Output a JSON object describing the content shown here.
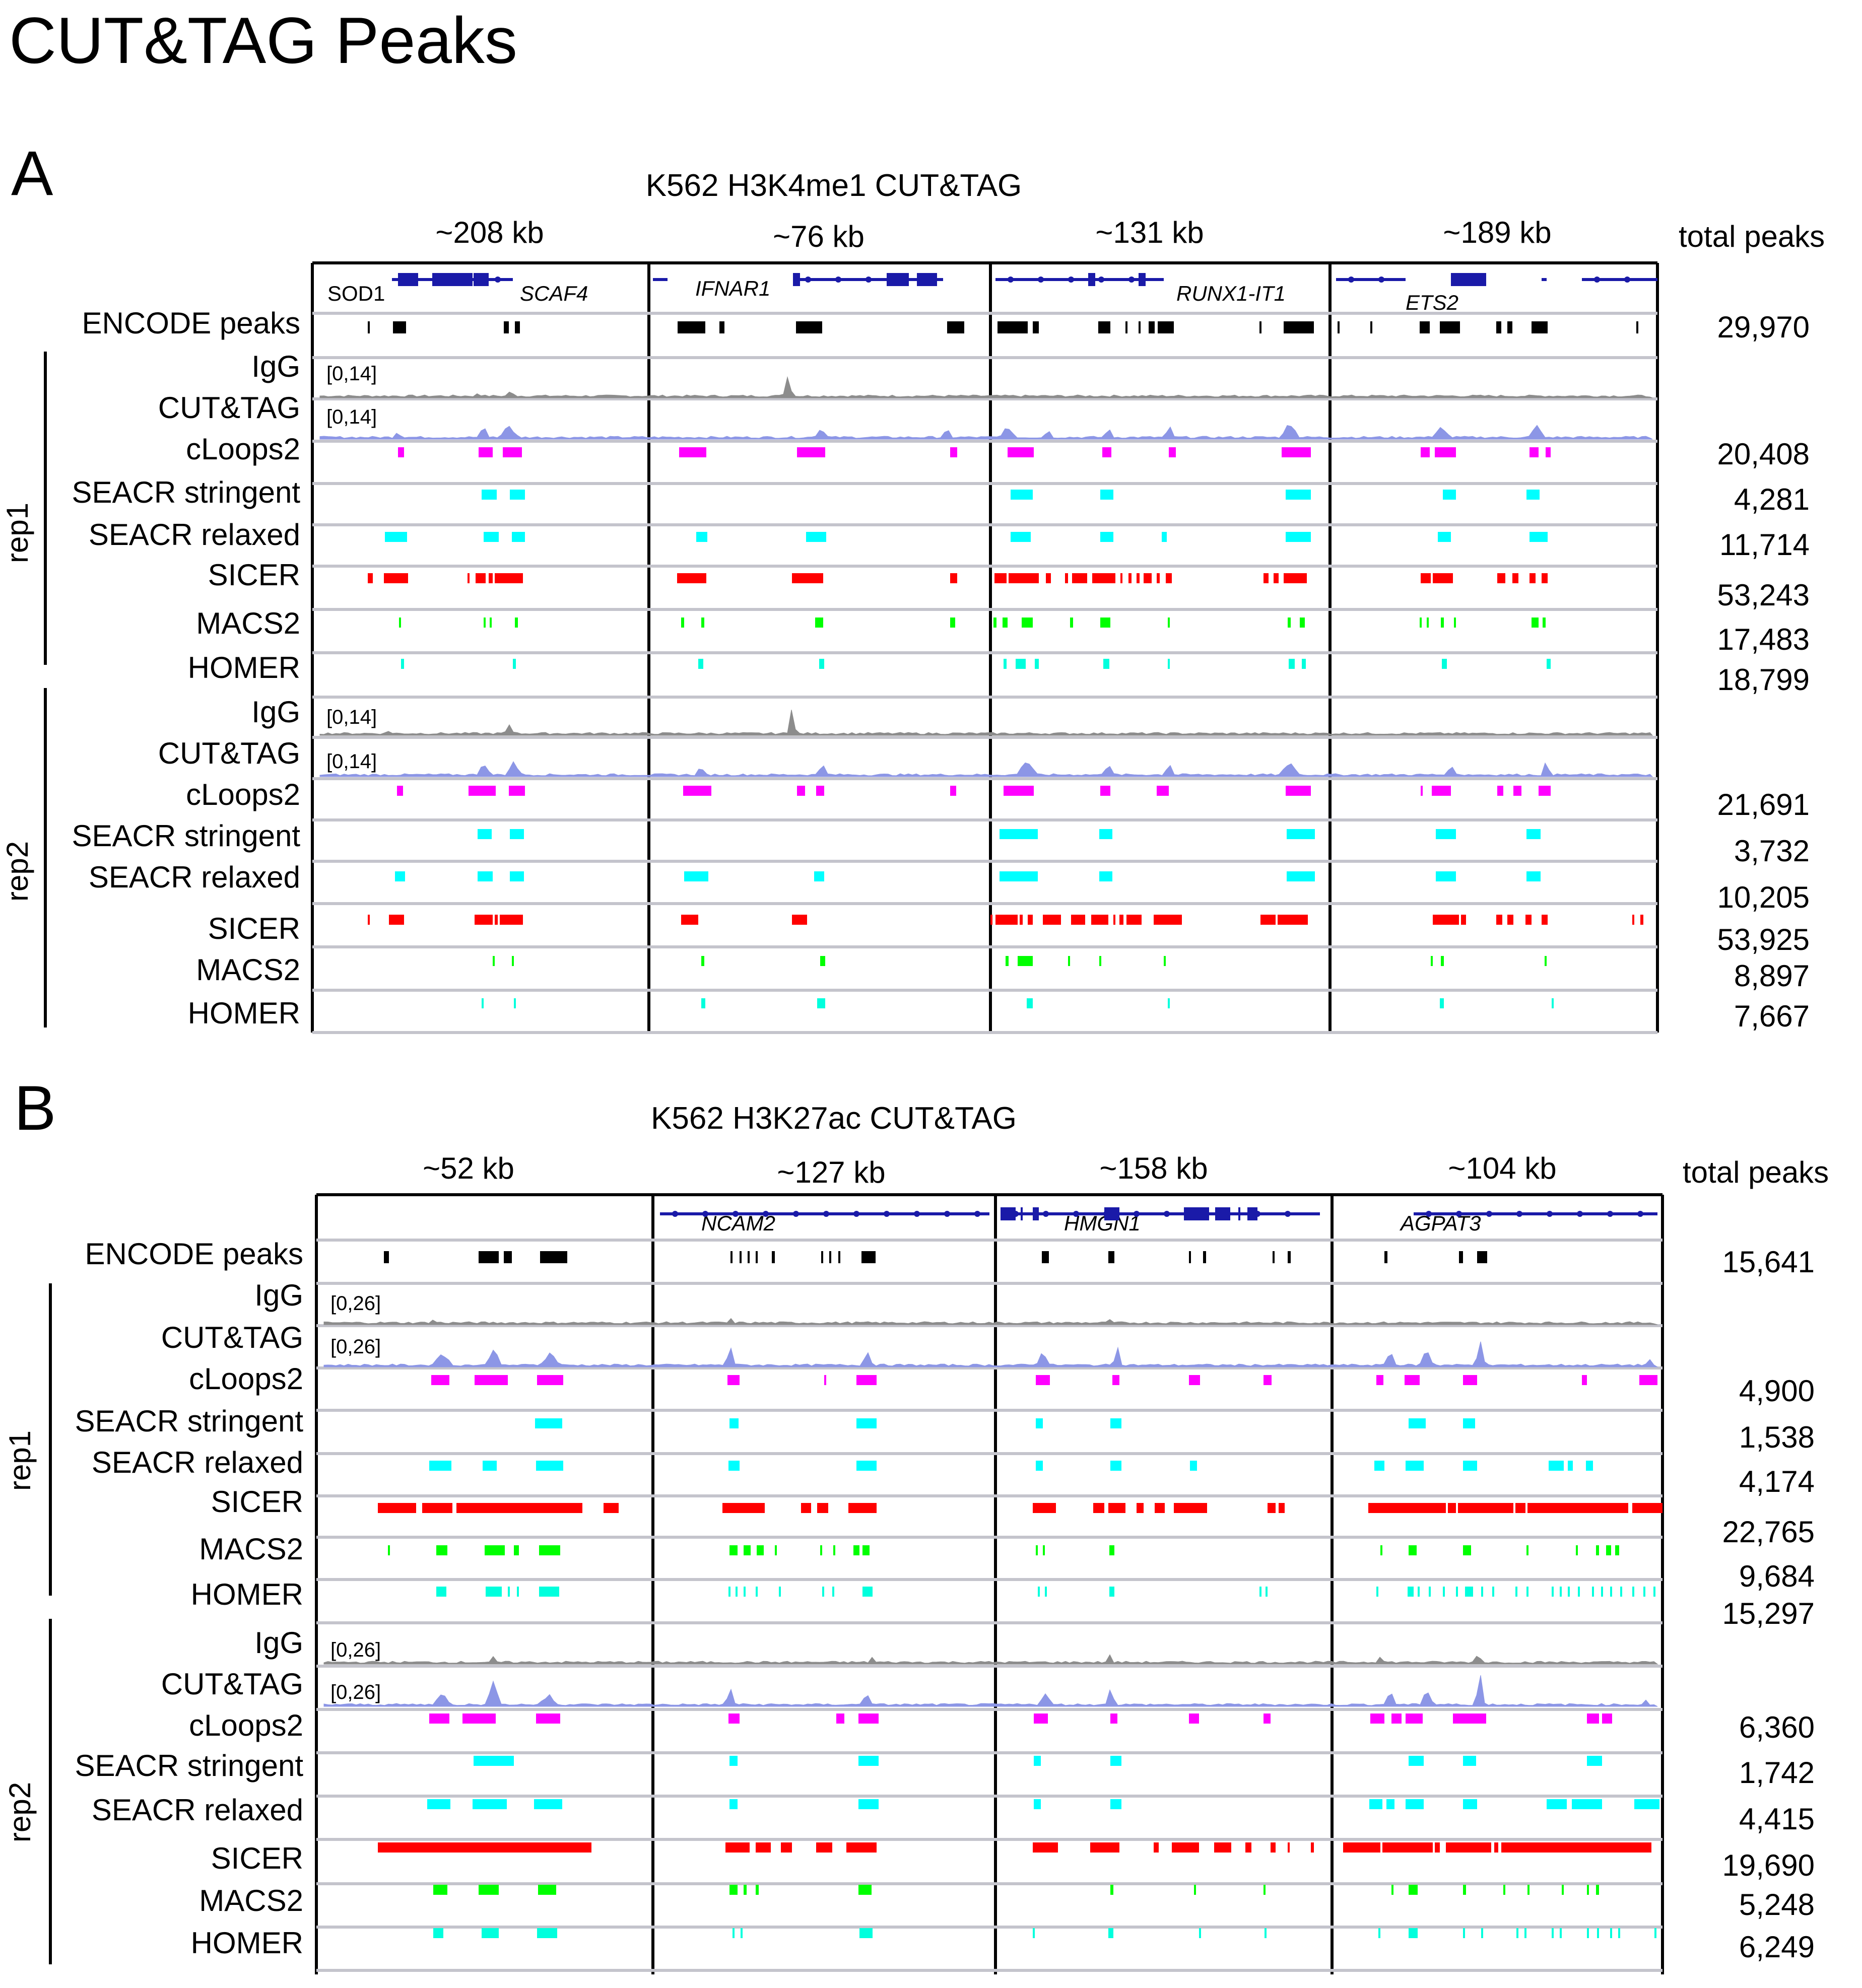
{
  "title": "CUT&TAG Peaks",
  "panels": [
    {
      "letter": "A",
      "title": "K562 H3K4me1 CUT&TAG",
      "spans": [
        "~208 kb",
        "~76 kb",
        "~131 kb",
        "~189 kb"
      ],
      "total_peaks_header": "total peaks",
      "genes": [
        {
          "label": "SOD1",
          "italic": false
        },
        {
          "label": "SCAF4",
          "italic": true
        },
        {
          "label": "IFNAR1",
          "italic": true
        },
        {
          "label": "RUNX1-IT1",
          "italic": true
        },
        {
          "label": "ETS2",
          "italic": true
        }
      ],
      "encode_label": "ENCODE peaks",
      "encode_count": "29,970",
      "replicates": [
        {
          "label": "rep1",
          "tracks": [
            {
              "name": "IgG",
              "scale": "[0,14]",
              "count": ""
            },
            {
              "name": "CUT&TAG",
              "scale": "[0,14]",
              "count": ""
            },
            {
              "name": "cLoops2",
              "count": "20,408"
            },
            {
              "name": "SEACR stringent",
              "count": "4,281"
            },
            {
              "name": "SEACR relaxed",
              "count": "11,714"
            },
            {
              "name": "SICER",
              "count": "53,243"
            },
            {
              "name": "MACS2",
              "count": "17,483"
            },
            {
              "name": "HOMER",
              "count": "18,799"
            }
          ]
        },
        {
          "label": "rep2",
          "tracks": [
            {
              "name": "IgG",
              "scale": "[0,14]",
              "count": ""
            },
            {
              "name": "CUT&TAG",
              "scale": "[0,14]",
              "count": ""
            },
            {
              "name": "cLoops2",
              "count": "21,691"
            },
            {
              "name": "SEACR stringent",
              "count": "3,732"
            },
            {
              "name": "SEACR relaxed",
              "count": "10,205"
            },
            {
              "name": "SICER",
              "count": "53,925"
            },
            {
              "name": "MACS2",
              "count": "8,897"
            },
            {
              "name": "HOMER",
              "count": "7,667"
            }
          ]
        }
      ]
    },
    {
      "letter": "B",
      "title": "K562 H3K27ac CUT&TAG",
      "spans": [
        "~52 kb",
        "~127 kb",
        "~158 kb",
        "~104 kb"
      ],
      "total_peaks_header": "total peaks",
      "genes": [
        {
          "label": "NCAM2",
          "italic": true
        },
        {
          "label": "HMGN1",
          "italic": true
        },
        {
          "label": "AGPAT3",
          "italic": true
        }
      ],
      "encode_label": "ENCODE peaks",
      "encode_count": "15,641",
      "replicates": [
        {
          "label": "rep1",
          "tracks": [
            {
              "name": "IgG",
              "scale": "[0,26]",
              "count": ""
            },
            {
              "name": "CUT&TAG",
              "scale": "[0,26]",
              "count": ""
            },
            {
              "name": "cLoops2",
              "count": "4,900"
            },
            {
              "name": "SEACR stringent",
              "count": "1,538"
            },
            {
              "name": "SEACR relaxed",
              "count": "4,174"
            },
            {
              "name": "SICER",
              "count": "22,765"
            },
            {
              "name": "MACS2",
              "count": "9,684"
            },
            {
              "name": "HOMER",
              "count": "15,297"
            }
          ]
        },
        {
          "label": "rep2",
          "tracks": [
            {
              "name": "IgG",
              "scale": "[0,26]",
              "count": ""
            },
            {
              "name": "CUT&TAG",
              "scale": "[0,26]",
              "count": ""
            },
            {
              "name": "cLoops2",
              "count": "6,360"
            },
            {
              "name": "SEACR stringent",
              "count": "1,742"
            },
            {
              "name": "SEACR relaxed",
              "count": "4,415"
            },
            {
              "name": "SICER",
              "count": "19,690"
            },
            {
              "name": "MACS2",
              "count": "5,248"
            },
            {
              "name": "HOMER",
              "count": "6,249"
            }
          ]
        }
      ]
    }
  ],
  "colors": {
    "encode": "#000000",
    "igg": "#8c8c8c",
    "cuttag": "#8c96e6",
    "cloops2": "#ff00ff",
    "seacr": "#00ffff",
    "sicer": "#ff0000",
    "macs2": "#00ff00",
    "homer": "#00ffdd",
    "gene": "#1a1aa8",
    "track_divider": "#c4c4cc"
  }
}
